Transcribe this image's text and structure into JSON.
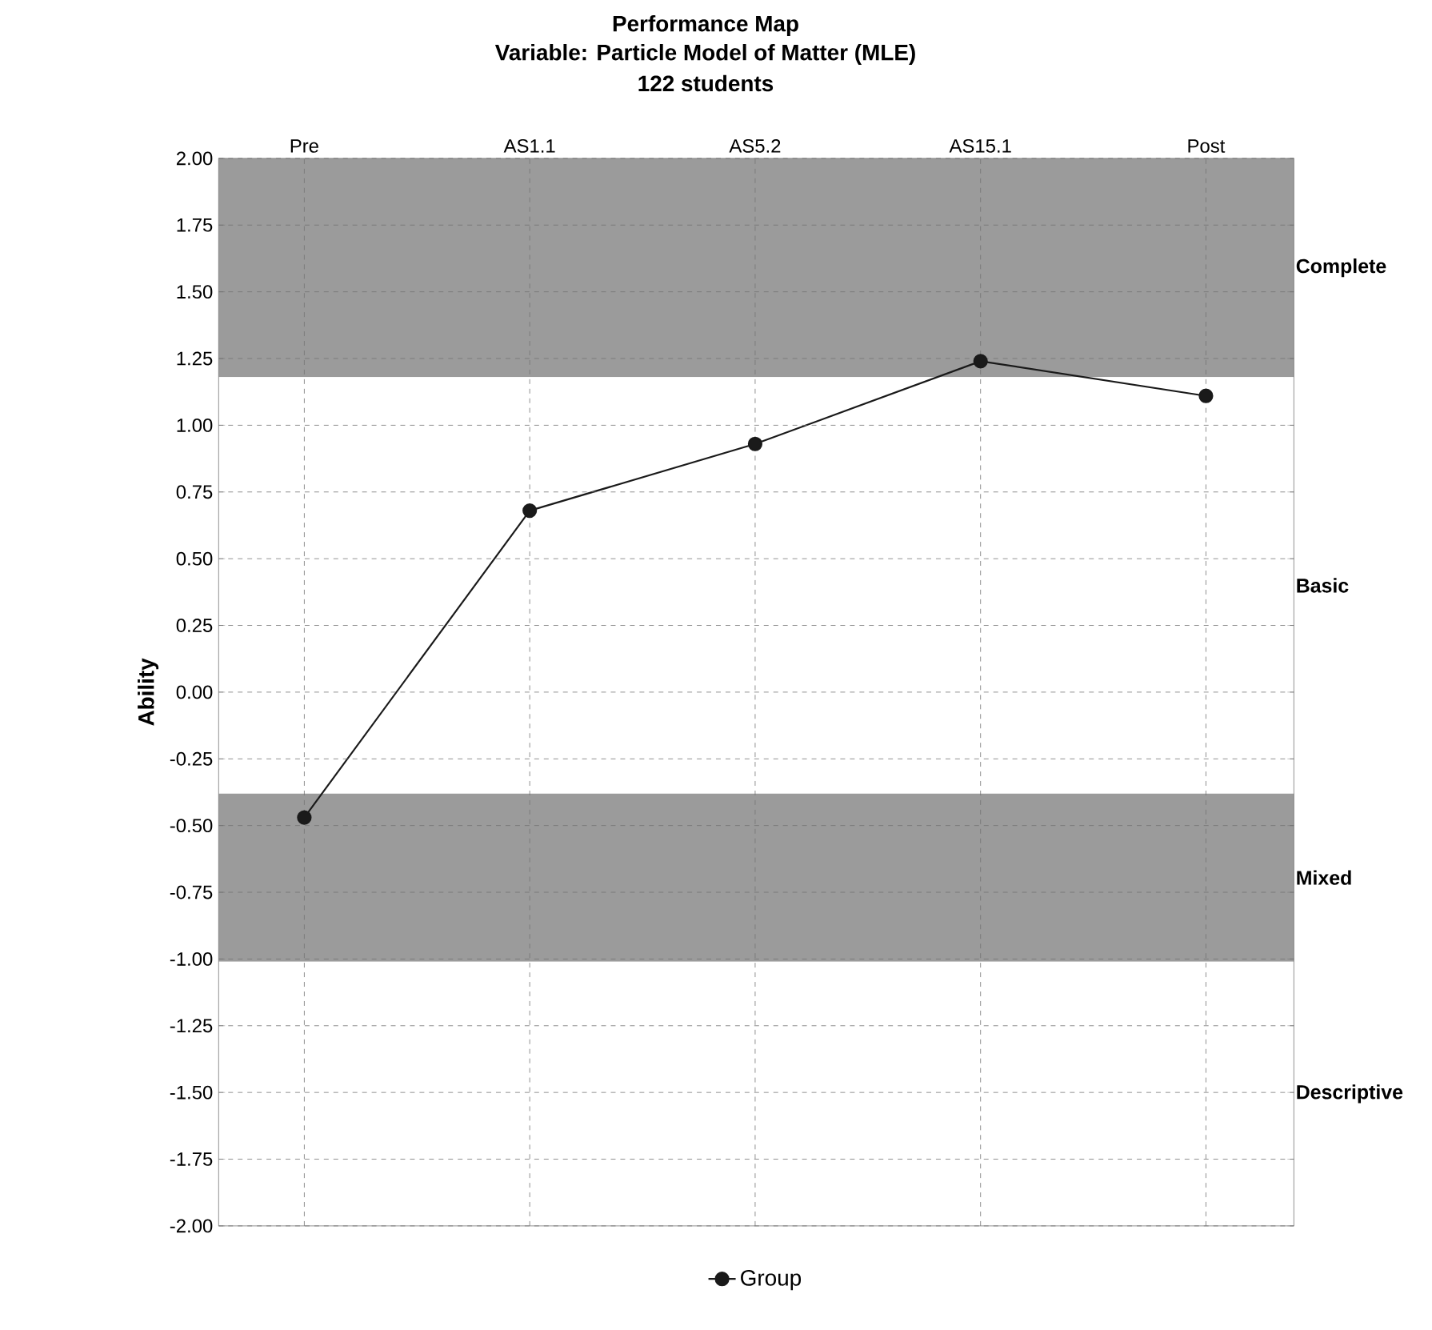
{
  "chart_data": {
    "type": "line",
    "title": "Performance Map",
    "subtitle": "Variable: Particle Model of Matter (MLE)",
    "annotations": [
      "122 students"
    ],
    "ylabel": "Ability",
    "categories": [
      "Pre",
      "AS1.1",
      "AS5.2",
      "AS15.1",
      "Post"
    ],
    "series": [
      {
        "name": "Group",
        "color": "#1a1a1a",
        "values": [
          -0.47,
          0.68,
          0.93,
          1.24,
          1.11
        ]
      }
    ],
    "ylim": [
      -2.0,
      2.0
    ],
    "yticks": [
      {
        "value": -2.0,
        "label": "-2.00"
      },
      {
        "value": -1.75,
        "label": "-1.75"
      },
      {
        "value": -1.5,
        "label": "-1.50"
      },
      {
        "value": -1.25,
        "label": "-1.25"
      },
      {
        "value": -1.0,
        "label": "-1.00"
      },
      {
        "value": -0.75,
        "label": "-0.75"
      },
      {
        "value": -0.5,
        "label": "-0.50"
      },
      {
        "value": -0.25,
        "label": "-0.25"
      },
      {
        "value": 0,
        "label": "0.00"
      },
      {
        "value": 0.25,
        "label": "0.25"
      },
      {
        "value": 0.5,
        "label": "0.50"
      },
      {
        "value": 0.75,
        "label": "0.75"
      },
      {
        "value": 1.0,
        "label": "1.00"
      },
      {
        "value": 1.25,
        "label": "1.25"
      },
      {
        "value": 1.5,
        "label": "1.50"
      },
      {
        "value": 1.75,
        "label": "1.75"
      },
      {
        "value": 2.0,
        "label": "2.00"
      }
    ],
    "bands": [
      {
        "axis": "y",
        "from": 1.18,
        "to": 2.0,
        "label": "Complete",
        "color": "#9b9b9b"
      },
      {
        "axis": "y",
        "from": -0.38,
        "to": 1.18,
        "label": "Basic",
        "color": "#ffffff"
      },
      {
        "axis": "y",
        "from": -1.01,
        "to": -0.38,
        "label": "Mixed",
        "color": "#9b9b9b"
      },
      {
        "axis": "y",
        "from": -2.0,
        "to": -1.01,
        "label": "Descriptive",
        "color": "#ffffff"
      }
    ],
    "grid": true,
    "legend": "bottom",
    "marker": "circle",
    "line_style": "solid"
  }
}
